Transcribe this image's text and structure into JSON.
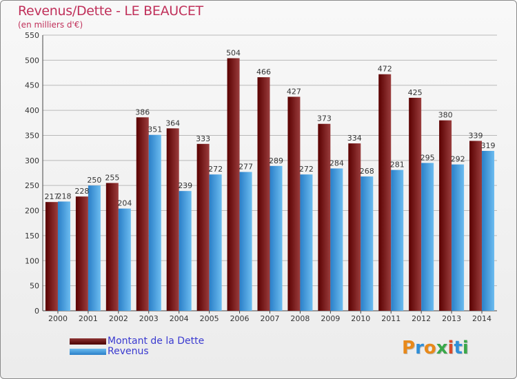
{
  "title": "Revenus/Dette - LE BEAUCET",
  "subtitle": "(en milliers d'€)",
  "colors": {
    "dette": "#7a1f1f",
    "revenus": "#3d9ee0",
    "title": "#c0305a",
    "legend_text": "#3a3ad0",
    "grid": "#b9b9b9"
  },
  "legend": [
    {
      "label": "Montant de la Dette",
      "color": "#7a1f1f"
    },
    {
      "label": "Revenus",
      "color": "#3d9ee0"
    }
  ],
  "logo": {
    "text": "Proxiti"
  },
  "chart_data": {
    "type": "bar",
    "title": "Revenus/Dette - LE BEAUCET",
    "subtitle": "(en milliers d'€)",
    "categories": [
      "2000",
      "2001",
      "2002",
      "2003",
      "2004",
      "2005",
      "2006",
      "2007",
      "2008",
      "2009",
      "2010",
      "2011",
      "2012",
      "2013",
      "2014"
    ],
    "series": [
      {
        "name": "Montant de la Dette",
        "values": [
          217,
          228,
          255,
          386,
          364,
          333,
          504,
          466,
          427,
          373,
          334,
          472,
          425,
          380,
          339
        ]
      },
      {
        "name": "Revenus",
        "values": [
          218,
          250,
          204,
          351,
          239,
          272,
          277,
          289,
          272,
          284,
          268,
          281,
          295,
          292,
          319
        ]
      }
    ],
    "ylim": [
      0,
      550
    ],
    "yticks": [
      0,
      50,
      100,
      150,
      200,
      250,
      300,
      350,
      400,
      450,
      500,
      550
    ],
    "grid": true,
    "xlabel": "",
    "ylabel": "",
    "legend_position": "bottom-left"
  }
}
